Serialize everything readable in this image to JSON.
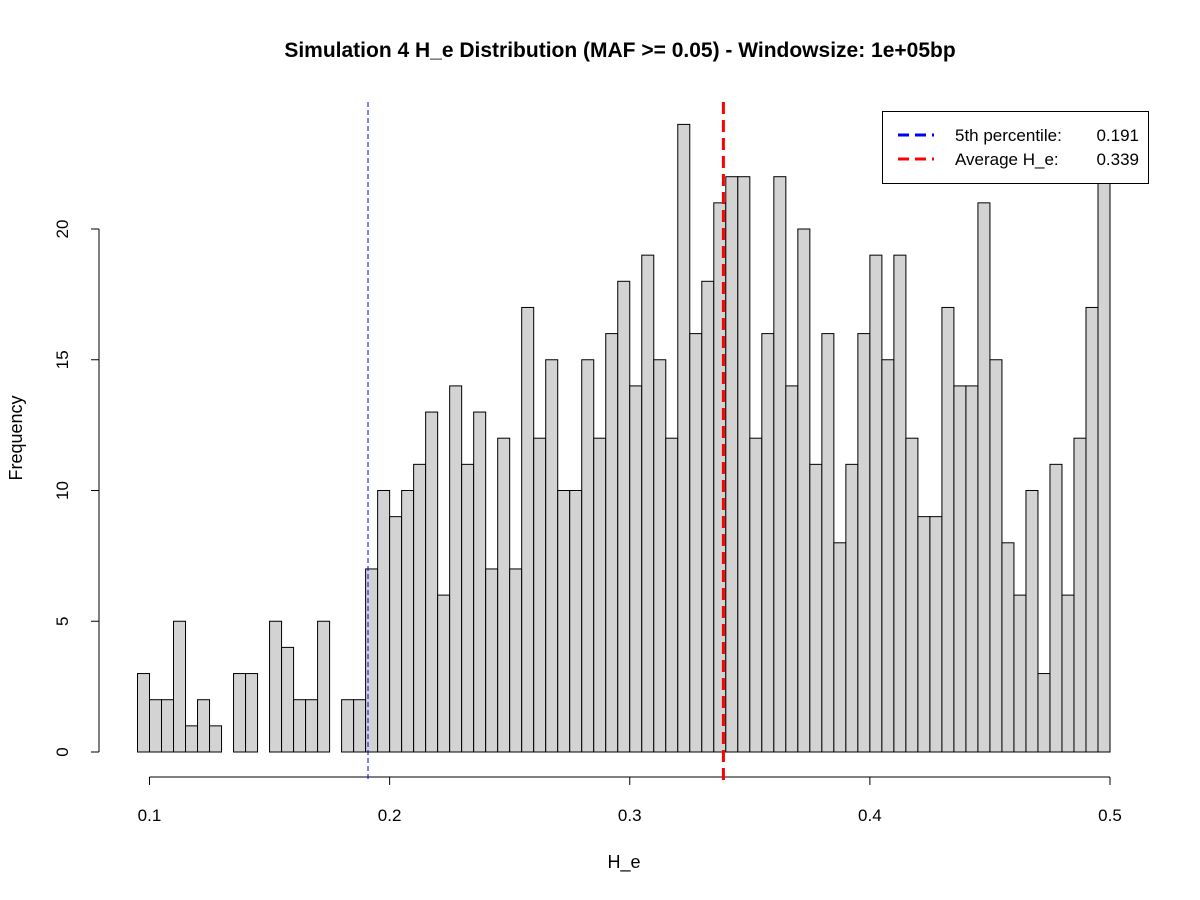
{
  "chart_data": {
    "type": "bar",
    "title": "Simulation 4 H_e Distribution (MAF >= 0.05) - Windowsize: 1e+05bp",
    "xlabel": "H_e",
    "ylabel": "Frequency",
    "xlim": [
      0.095,
      0.5
    ],
    "ylim": [
      0,
      24
    ],
    "x_ticks": [
      0.1,
      0.2,
      0.3,
      0.4,
      0.5
    ],
    "y_ticks": [
      0,
      5,
      10,
      15,
      20
    ],
    "bin_width": 0.005,
    "bin_start": 0.095,
    "values": [
      3,
      2,
      2,
      5,
      1,
      2,
      1,
      0,
      3,
      3,
      0,
      5,
      4,
      2,
      2,
      5,
      0,
      2,
      2,
      7,
      10,
      9,
      10,
      11,
      13,
      6,
      14,
      11,
      13,
      7,
      12,
      7,
      17,
      12,
      15,
      10,
      10,
      15,
      12,
      16,
      18,
      14,
      19,
      15,
      12,
      24,
      16,
      18,
      21,
      22,
      22,
      12,
      16,
      22,
      14,
      20,
      11,
      16,
      8,
      11,
      16,
      19,
      15,
      19,
      12,
      9,
      9,
      17,
      14,
      14,
      21,
      15,
      8,
      6,
      10,
      3,
      11,
      6,
      12,
      17,
      22
    ],
    "vlines": [
      {
        "label": "5th percentile:",
        "value_text": "0.191",
        "x": 0.191,
        "color": "#0000ff",
        "dash": true,
        "width": 1
      },
      {
        "label": "Average H_e:",
        "value_text": "0.339",
        "x": 0.339,
        "color": "#ff0000",
        "dash": true,
        "width": 3
      }
    ],
    "legend_position": "top-right",
    "grid": false
  }
}
